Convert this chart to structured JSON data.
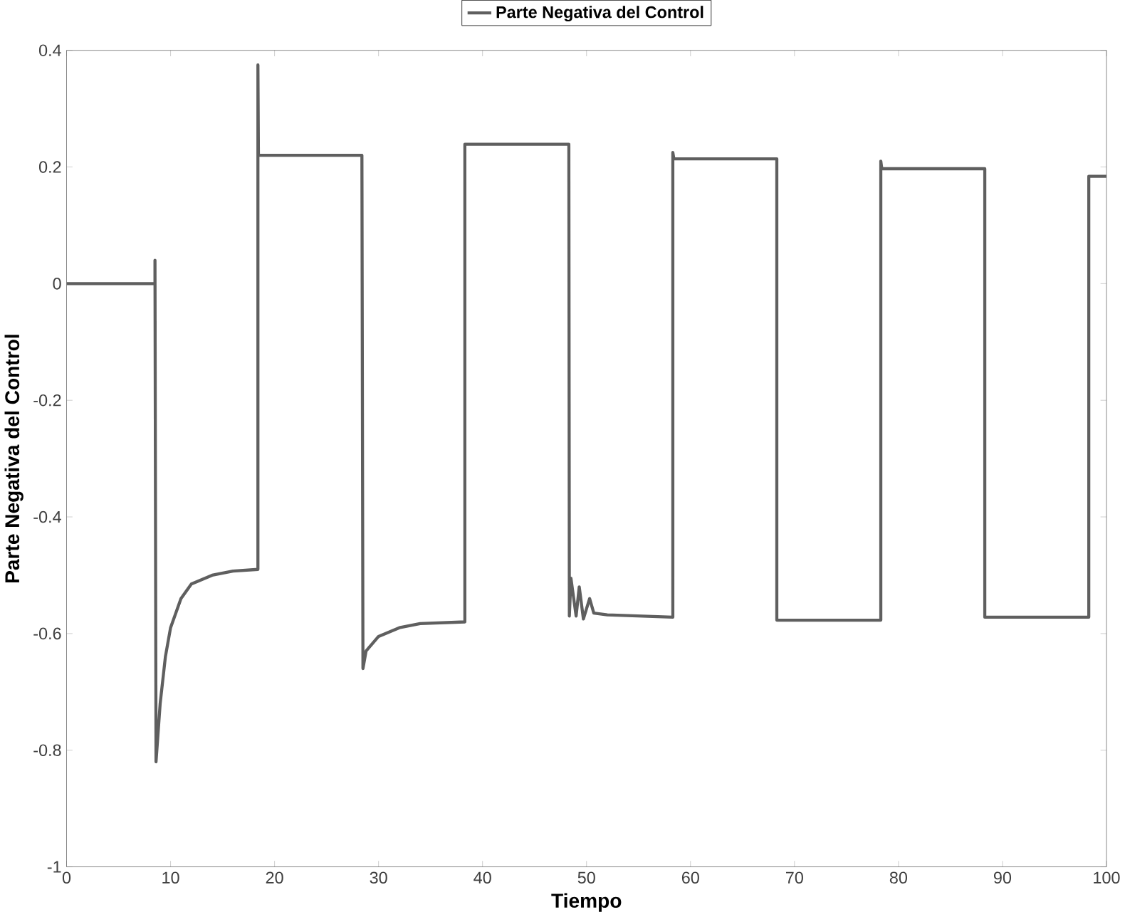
{
  "chart_data": {
    "type": "line",
    "xlabel": "Tiempo",
    "ylabel": "Parte Negativa del Control",
    "legend": "top",
    "grid": false,
    "xlim": [
      0,
      100
    ],
    "ylim": [
      -1,
      0.4
    ],
    "xticks": [
      0,
      10,
      20,
      30,
      40,
      50,
      60,
      70,
      80,
      90,
      100
    ],
    "yticks": [
      -1,
      -0.8,
      -0.6,
      -0.4,
      -0.2,
      0,
      0.2,
      0.4
    ],
    "series": [
      {
        "name": "Parte Negativa del Control",
        "color": "#5f5f5f",
        "x": [
          0,
          8.5,
          8.5,
          8.6,
          9,
          9.5,
          10,
          11,
          12,
          14,
          16,
          18.4,
          18.4,
          18.45,
          28.4,
          28.5,
          28.8,
          30,
          32,
          34,
          38.3,
          38.3,
          48.3,
          48.35,
          48.5,
          49,
          49.3,
          49.7,
          50.3,
          50.7,
          52,
          58.3,
          58.3,
          58.4,
          68.3,
          68.3,
          78.3,
          78.3,
          78.4,
          88.3,
          88.3,
          98.3,
          98.3,
          100
        ],
        "values": [
          0,
          0,
          0.04,
          -0.82,
          -0.72,
          -0.64,
          -0.59,
          -0.54,
          -0.515,
          -0.5,
          -0.493,
          -0.49,
          0.375,
          0.22,
          0.22,
          -0.66,
          -0.63,
          -0.605,
          -0.59,
          -0.583,
          -0.58,
          0.239,
          0.239,
          -0.57,
          -0.505,
          -0.57,
          -0.52,
          -0.575,
          -0.54,
          -0.565,
          -0.568,
          -0.572,
          0.225,
          0.214,
          0.214,
          -0.577,
          -0.577,
          0.21,
          0.197,
          0.197,
          -0.572,
          -0.572,
          0.184,
          0.184
        ]
      }
    ]
  }
}
